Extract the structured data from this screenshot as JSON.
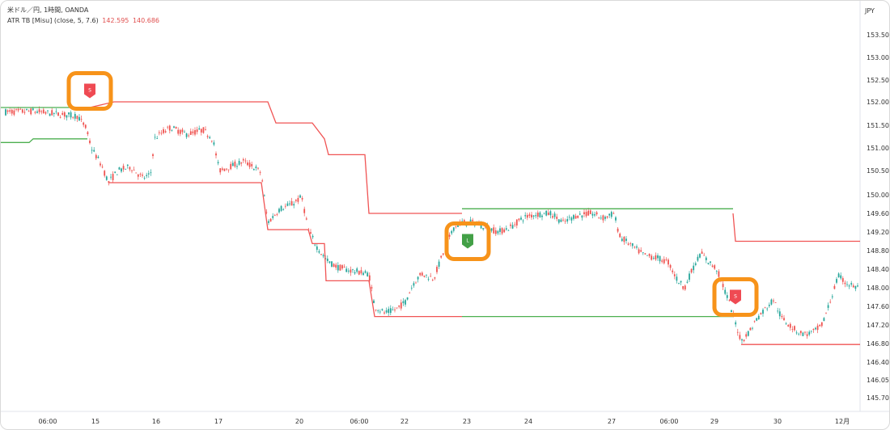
{
  "legend": {
    "symbol": "米ドル／円, 1時間, OANDA",
    "indicator": "ATR TB [Misu] (close, 5, 7.6)",
    "value1": "142.595",
    "value2": "140.686"
  },
  "currency": "JPY",
  "chart_data": {
    "type": "candlestick",
    "instrument": "米ドル／円",
    "timeframe": "1時間",
    "source": "OANDA",
    "ylim": [
      145.5,
      153.7
    ],
    "y_ticks": [
      "153.500",
      "153.000",
      "152.500",
      "152.000",
      "151.500",
      "151.000",
      "150.500",
      "150.000",
      "149.600",
      "149.200",
      "148.800",
      "148.400",
      "148.000",
      "147.600",
      "147.200",
      "146.800",
      "146.400",
      "146.050",
      "145.700"
    ],
    "x_ticks": [
      "06:00",
      "15",
      "16",
      "17",
      "20",
      "06:00",
      "22",
      "23",
      "24",
      "27",
      "06:00",
      "29",
      "30",
      "12月"
    ],
    "price_path": [
      [
        0,
        151.78
      ],
      [
        40,
        151.8
      ],
      [
        80,
        151.72
      ],
      [
        95,
        151.7
      ],
      [
        105,
        151.45
      ],
      [
        112,
        151.0
      ],
      [
        125,
        150.6
      ],
      [
        133,
        150.25
      ],
      [
        145,
        150.5
      ],
      [
        160,
        150.58
      ],
      [
        175,
        150.35
      ],
      [
        185,
        150.4
      ],
      [
        190,
        151.2
      ],
      [
        200,
        151.35
      ],
      [
        210,
        151.45
      ],
      [
        230,
        151.3
      ],
      [
        250,
        151.4
      ],
      [
        262,
        151.2
      ],
      [
        270,
        150.5
      ],
      [
        285,
        150.6
      ],
      [
        300,
        150.7
      ],
      [
        315,
        150.55
      ],
      [
        322,
        150.45
      ],
      [
        330,
        149.4
      ],
      [
        345,
        149.7
      ],
      [
        360,
        149.8
      ],
      [
        372,
        149.95
      ],
      [
        380,
        149.25
      ],
      [
        390,
        148.9
      ],
      [
        402,
        148.6
      ],
      [
        415,
        148.45
      ],
      [
        430,
        148.38
      ],
      [
        455,
        148.3
      ],
      [
        462,
        147.6
      ],
      [
        475,
        147.45
      ],
      [
        490,
        147.55
      ],
      [
        500,
        147.7
      ],
      [
        510,
        148.1
      ],
      [
        520,
        148.3
      ],
      [
        535,
        148.2
      ],
      [
        548,
        148.8
      ],
      [
        560,
        149.3
      ],
      [
        570,
        149.4
      ],
      [
        585,
        149.4
      ],
      [
        600,
        149.3
      ],
      [
        615,
        149.2
      ],
      [
        630,
        149.3
      ],
      [
        645,
        149.5
      ],
      [
        660,
        149.58
      ],
      [
        680,
        149.6
      ],
      [
        695,
        149.4
      ],
      [
        710,
        149.55
      ],
      [
        730,
        149.6
      ],
      [
        745,
        149.5
      ],
      [
        758,
        149.6
      ],
      [
        765,
        149.1
      ],
      [
        780,
        148.9
      ],
      [
        795,
        148.7
      ],
      [
        810,
        148.65
      ],
      [
        825,
        148.55
      ],
      [
        835,
        148.2
      ],
      [
        845,
        148.0
      ],
      [
        855,
        148.4
      ],
      [
        865,
        148.75
      ],
      [
        875,
        148.55
      ],
      [
        885,
        148.4
      ],
      [
        900,
        147.7
      ],
      [
        915,
        146.85
      ],
      [
        925,
        147.05
      ],
      [
        935,
        147.35
      ],
      [
        945,
        147.55
      ],
      [
        955,
        147.75
      ],
      [
        965,
        147.35
      ],
      [
        975,
        147.2
      ],
      [
        985,
        147.05
      ],
      [
        995,
        147.0
      ],
      [
        1005,
        147.05
      ],
      [
        1015,
        147.2
      ],
      [
        1025,
        147.7
      ],
      [
        1035,
        148.25
      ],
      [
        1045,
        148.1
      ],
      [
        1058,
        148.0
      ],
      [
        1065,
        148.05
      ]
    ],
    "series": [
      {
        "name": "ATR TB long stop",
        "color": "#4caf50",
        "segments": [
          [
            [
              0,
              151.12
            ],
            [
              35,
              151.12
            ],
            [
              40,
              151.2
            ],
            [
              107,
              151.2
            ]
          ],
          [
            [
              570,
              149.7
            ],
            [
              905,
              149.7
            ]
          ]
        ]
      },
      {
        "name": "ATR TB short stop",
        "color": "#f05454",
        "segments": [
          [
            [
              110,
              151.88
            ],
            [
              140,
              152.0
            ],
            [
              330,
              152.0
            ],
            [
              340,
              151.55
            ],
            [
              385,
              151.55
            ],
            [
              400,
              151.2
            ],
            [
              405,
              150.85
            ],
            [
              450,
              150.85
            ],
            [
              455,
              149.6
            ],
            [
              570,
              149.6
            ]
          ],
          [
            [
              905,
              149.6
            ],
            [
              908,
              149.0
            ],
            [
              1062,
              149.0
            ]
          ]
        ]
      },
      {
        "name": "ATR TB trailing stop (red)",
        "color": "#f05454",
        "segments": [
          [
            [
              133,
              150.25
            ],
            [
              322,
              150.25
            ],
            [
              330,
              149.25
            ],
            [
              380,
              149.25
            ],
            [
              385,
              148.95
            ],
            [
              400,
              148.95
            ],
            [
              402,
              148.15
            ],
            [
              455,
              148.15
            ],
            [
              462,
              147.38
            ],
            [
              570,
              147.38
            ]
          ],
          [
            [
              915,
              146.78
            ],
            [
              1062,
              146.78
            ]
          ]
        ]
      },
      {
        "name": "ATR TB trailing stop (green)",
        "color": "#4caf50",
        "segments": [
          [
            [
              0,
              151.88
            ],
            [
              107,
              151.88
            ]
          ],
          [
            [
              570,
              147.38
            ],
            [
              905,
              147.38
            ]
          ]
        ]
      }
    ],
    "signals": [
      {
        "type": "short",
        "label": "S",
        "x": 110,
        "y": 152.25
      },
      {
        "type": "long",
        "label": "L",
        "x": 577,
        "y": 149.0
      },
      {
        "type": "short",
        "label": "S",
        "x": 908,
        "y": 147.8
      }
    ],
    "colors": {
      "up": "#26a69a",
      "down": "#ef5350",
      "highlight": "#f7931a"
    }
  }
}
